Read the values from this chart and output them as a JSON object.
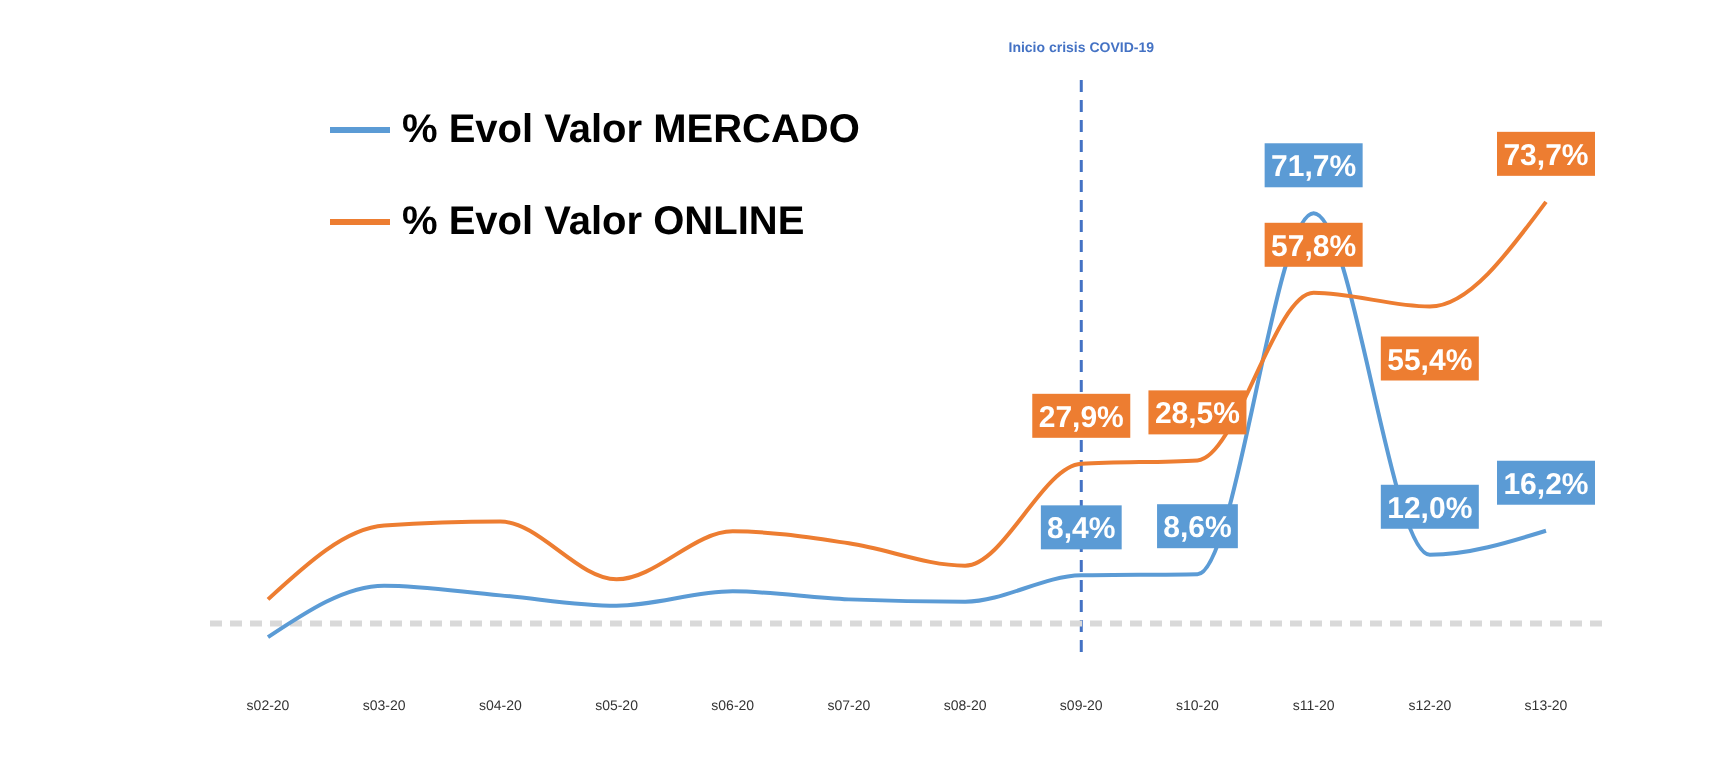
{
  "chart_data": {
    "type": "line",
    "categories": [
      "s02-20",
      "s03-20",
      "s04-20",
      "s05-20",
      "s06-20",
      "s07-20",
      "s08-20",
      "s09-20",
      "s10-20",
      "s11-20",
      "s12-20",
      "s13-20"
    ],
    "ylim": [
      -5,
      95
    ],
    "tick_labels": "x",
    "legend": "top left",
    "marker": "none",
    "line_style": "solid",
    "series": [
      {
        "name": "% Evol Valor MERCADO",
        "color": "#5b9bd5",
        "values": [
          -2.4,
          6.6,
          4.9,
          3.1,
          5.6,
          4.2,
          3.8,
          8.4,
          8.6,
          71.7,
          12.0,
          16.2
        ],
        "value_labels": [
          null,
          null,
          null,
          null,
          null,
          null,
          null,
          "8,4%",
          "8,6%",
          "71,7%",
          "12,0%",
          "16,2%"
        ]
      },
      {
        "name": "% Evol Valor ONLINE",
        "color": "#ed7d31",
        "values": [
          4.2,
          17.1,
          17.8,
          7.7,
          16.1,
          14.0,
          10.1,
          27.9,
          28.5,
          57.8,
          55.4,
          73.7
        ],
        "value_labels": [
          null,
          null,
          null,
          null,
          null,
          null,
          null,
          "27,9%",
          "28,5%",
          "57,8%",
          "55,4%",
          "73,7%"
        ]
      }
    ],
    "ref_lines": [
      {
        "axis": "x",
        "value": "s09-20",
        "label": "Inicio crisis COVID-19",
        "color": "#4472c4",
        "line_style": "dashed"
      },
      {
        "axis": "y",
        "value": 0,
        "label": null,
        "color": "#d9d9d9",
        "line_style": "dashed"
      }
    ]
  }
}
